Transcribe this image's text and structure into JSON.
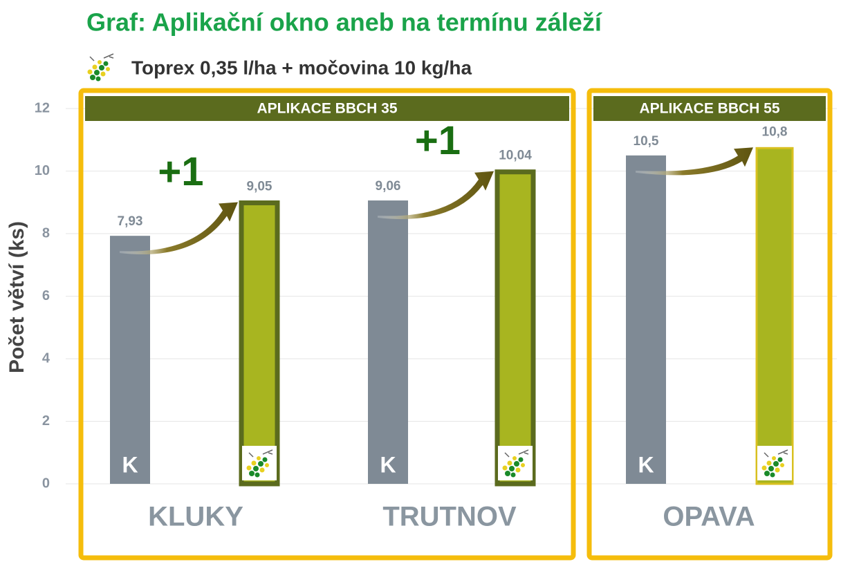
{
  "chart_data": {
    "type": "bar",
    "title": "Graf: Aplikační okno aneb na termínu záleží",
    "subtitle": "Toprex 0,35 l/ha + močovina 10 kg/ha",
    "y_label": "Počet větví (ks)",
    "categories": [
      "KLUKY",
      "TRUTNOV",
      "OPAVA"
    ],
    "series": [
      {
        "name": "K",
        "color": "#7f8a95",
        "values": [
          7.93,
          9.06,
          10.5
        ],
        "value_labels": [
          "7,93",
          "9,06",
          "10,5"
        ]
      },
      {
        "color": "#a8b520",
        "values": [
          9.05,
          10.04,
          10.8
        ],
        "value_labels": [
          "9,05",
          "10,04",
          "10,8"
        ]
      }
    ],
    "panels": [
      "APLIKACE BBCH 35",
      "APLIKACE BBCH 55"
    ],
    "annotations": [
      "+1",
      "+1"
    ],
    "ylim": [
      0,
      12
    ],
    "yticks": [
      0,
      2,
      4,
      6,
      8,
      10,
      12
    ],
    "grid": true
  }
}
